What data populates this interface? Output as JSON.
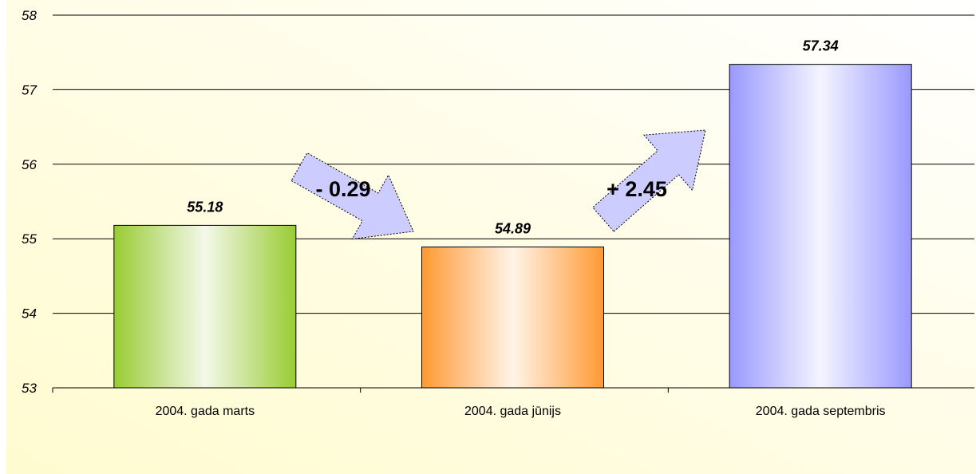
{
  "chart_data": {
    "type": "bar",
    "categories": [
      "2004. gada marts",
      "2004. gada jūnijs",
      "2004. gada septembris"
    ],
    "values": [
      55.18,
      54.89,
      57.34
    ],
    "data_labels": [
      "55.18",
      "54.89",
      "57.34"
    ],
    "y_ticks": [
      "53",
      "54",
      "55",
      "56",
      "57",
      "58"
    ],
    "ylim": [
      53,
      58
    ],
    "grid": true,
    "bar_colors": [
      "#99cc33",
      "#ff9933",
      "#9999ff"
    ],
    "annotations": [
      {
        "label": "- 0.29",
        "direction": "down",
        "between": [
          0,
          1
        ]
      },
      {
        "label": "+ 2.45",
        "direction": "up",
        "between": [
          1,
          2
        ]
      }
    ],
    "arrow_color": "#ccccff"
  }
}
